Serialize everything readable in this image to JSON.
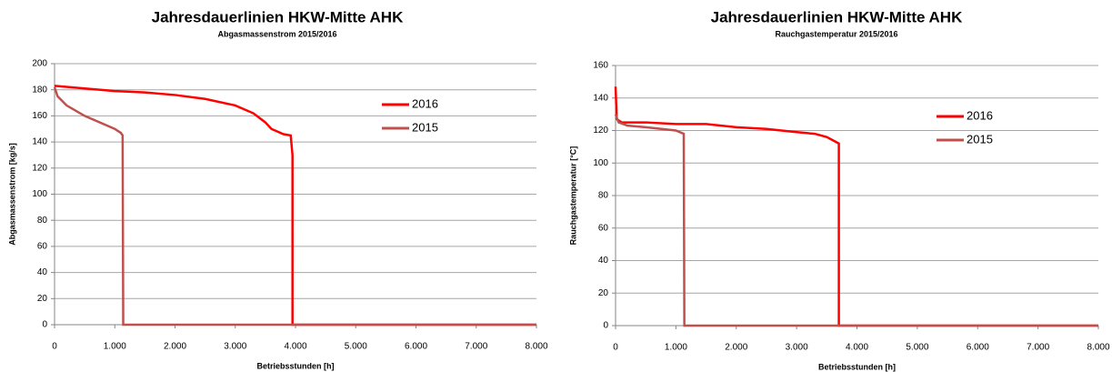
{
  "chart_data": [
    {
      "type": "line",
      "title": "Jahresdauerlinien HKW-Mitte AHK",
      "subtitle": "Abgasmassenstrom 2015/2016",
      "x_label": "Betriebsstunden [h]",
      "y_label": "Abgasmassenstrom [kg/s]",
      "xlim": [
        0,
        8000
      ],
      "xticks": [
        0,
        {
          "value": 1000,
          "label": "1.000"
        },
        {
          "value": 2000,
          "label": "2.000"
        },
        {
          "value": 3000,
          "label": "3.000"
        },
        {
          "value": 4000,
          "label": "4.000"
        },
        {
          "value": 5000,
          "label": "5.000"
        },
        {
          "value": 6000,
          "label": "6.000"
        },
        {
          "value": 7000,
          "label": "7.000"
        },
        {
          "value": 8000,
          "label": "8.000"
        }
      ],
      "ylim": [
        0,
        200
      ],
      "yticks": [
        0,
        20,
        40,
        60,
        80,
        100,
        120,
        140,
        160,
        180,
        200
      ],
      "grid": true,
      "series": [
        {
          "name": "2016",
          "color": "#ff0000",
          "x": [
            0,
            500,
            1000,
            1500,
            2000,
            2500,
            3000,
            3300,
            3500,
            3600,
            3800,
            3920,
            3950,
            3950,
            8000
          ],
          "values": [
            183,
            181,
            179,
            178,
            176,
            173,
            168,
            162,
            155,
            150,
            146,
            145,
            130,
            0,
            0
          ]
        },
        {
          "name": "2015",
          "color": "#c0504d",
          "x": [
            0,
            50,
            200,
            500,
            800,
            1000,
            1100,
            1130,
            1140,
            8000
          ],
          "values": [
            182,
            175,
            168,
            160,
            154,
            150,
            147,
            145,
            0,
            0
          ]
        }
      ]
    },
    {
      "type": "line",
      "title": "Jahresdauerlinien HKW-Mitte AHK",
      "subtitle": "Rauchgastemperatur 2015/2016",
      "x_label": "Betriebsstunden [h]",
      "y_label": "Rauchgastemperatur [°C]",
      "xlim": [
        0,
        8000
      ],
      "xticks": [
        0,
        {
          "value": 1000,
          "label": "1.000"
        },
        {
          "value": 2000,
          "label": "2.000"
        },
        {
          "value": 3000,
          "label": "3.000"
        },
        {
          "value": 4000,
          "label": "4.000"
        },
        {
          "value": 5000,
          "label": "5.000"
        },
        {
          "value": 6000,
          "label": "6.000"
        },
        {
          "value": 7000,
          "label": "7.000"
        },
        {
          "value": 8000,
          "label": "8.000"
        }
      ],
      "ylim": [
        0,
        160
      ],
      "yticks": [
        0,
        20,
        40,
        60,
        80,
        100,
        120,
        140,
        160
      ],
      "grid": true,
      "series": [
        {
          "name": "2016",
          "color": "#ff0000",
          "x": [
            0,
            20,
            100,
            500,
            1000,
            1500,
            2000,
            2500,
            3000,
            3300,
            3500,
            3700,
            3700,
            8000
          ],
          "values": [
            147,
            127,
            125,
            125,
            124,
            124,
            122,
            121,
            119,
            118,
            116,
            112,
            0,
            0
          ]
        },
        {
          "name": "2015",
          "color": "#c0504d",
          "x": [
            0,
            50,
            200,
            500,
            1000,
            1130,
            1140,
            8000
          ],
          "values": [
            130,
            125,
            123,
            122,
            120,
            118,
            0,
            0
          ]
        }
      ]
    }
  ]
}
